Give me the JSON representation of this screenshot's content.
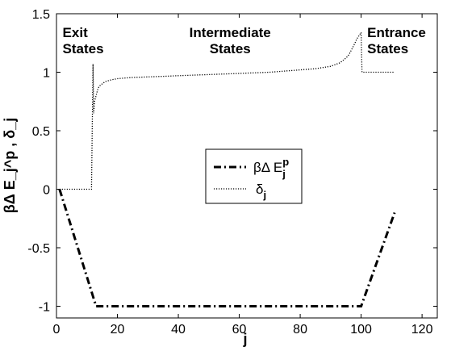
{
  "chart_data": {
    "type": "line",
    "xlabel": "j",
    "ylabel": "βΔ E_j^p , δ_j",
    "xlim": [
      0,
      125
    ],
    "ylim": [
      -1.1,
      1.5
    ],
    "xticks": [
      0,
      20,
      40,
      60,
      80,
      100,
      120
    ],
    "yticks": [
      -1,
      -0.5,
      0,
      0.5,
      1,
      1.5
    ],
    "xtick_labels": [
      "0",
      "20",
      "40",
      "60",
      "80",
      "100",
      "120"
    ],
    "ytick_labels": [
      "-1",
      "-0.5",
      "0",
      "0.5",
      "1",
      "1.5"
    ],
    "grid": false,
    "legend_position": "center",
    "annotations": [
      {
        "lines": [
          "Exit",
          "States"
        ],
        "x": 2
      },
      {
        "lines": [
          "Intermediate",
          "States"
        ],
        "x": 57
      },
      {
        "lines": [
          "Entrance",
          "States"
        ],
        "x": 102
      }
    ],
    "series": [
      {
        "name": "βΔ E_j^p",
        "legend_main": "βΔ E",
        "legend_sub": "j",
        "legend_sup": "p",
        "style": "dashdot",
        "x": [
          1,
          13,
          100,
          111
        ],
        "y": [
          0,
          -1,
          -1,
          -0.2
        ]
      },
      {
        "name": "δ_j",
        "legend_main": "δ",
        "legend_sub": "j",
        "style": "dotted",
        "x": [
          1,
          11.5,
          12,
          12.2,
          12.5,
          13,
          13.5,
          14,
          15,
          16,
          18,
          20,
          22,
          25,
          30,
          35,
          40,
          50,
          60,
          70,
          80,
          85,
          90,
          93,
          95,
          96,
          97,
          98,
          98.5,
          99,
          99.5,
          100,
          100.3,
          101,
          111
        ],
        "y": [
          0,
          0,
          1.07,
          0.65,
          0.75,
          0.8,
          0.85,
          0.88,
          0.9,
          0.92,
          0.935,
          0.945,
          0.95,
          0.955,
          0.96,
          0.965,
          0.97,
          0.98,
          0.99,
          1.0,
          1.02,
          1.03,
          1.05,
          1.08,
          1.12,
          1.15,
          1.2,
          1.25,
          1.28,
          1.3,
          1.32,
          1.34,
          1.0,
          1.0,
          1.0
        ]
      }
    ]
  }
}
